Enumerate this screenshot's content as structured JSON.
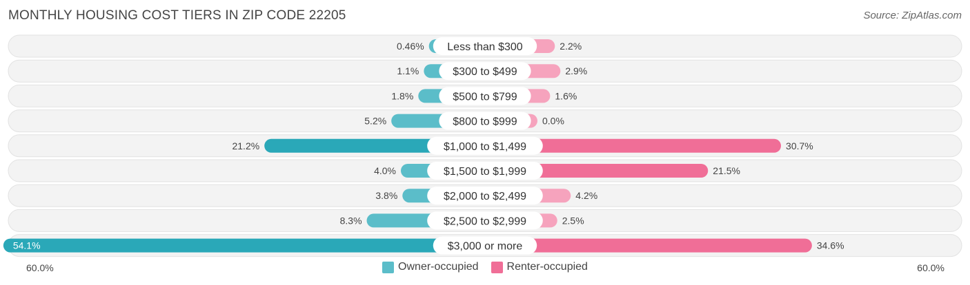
{
  "header": {
    "title": "MONTHLY HOUSING COST TIERS IN ZIP CODE 22205",
    "source": "Source: ZipAtlas.com"
  },
  "colors": {
    "owner": "#5bbdc9",
    "owner_strong": "#2aa8b8",
    "renter": "#f6a3bd",
    "renter_strong": "#f06e97",
    "track": "#f1f1f1"
  },
  "chart_data": {
    "type": "bar",
    "orientation": "horizontal-diverging",
    "categories": [
      "Less than $300",
      "$300 to $499",
      "$500 to $799",
      "$800 to $999",
      "$1,000 to $1,499",
      "$1,500 to $1,999",
      "$2,000 to $2,499",
      "$2,500 to $2,999",
      "$3,000 or more"
    ],
    "series": [
      {
        "name": "Owner-occupied",
        "values": [
          0.46,
          1.1,
          1.8,
          5.2,
          21.2,
          4.0,
          3.8,
          8.3,
          54.1
        ],
        "labels": [
          "0.46%",
          "1.1%",
          "1.8%",
          "5.2%",
          "21.2%",
          "4.0%",
          "3.8%",
          "8.3%",
          "54.1%"
        ]
      },
      {
        "name": "Renter-occupied",
        "values": [
          2.2,
          2.9,
          1.6,
          0.0,
          30.7,
          21.5,
          4.2,
          2.5,
          34.6
        ],
        "labels": [
          "2.2%",
          "2.9%",
          "1.6%",
          "0.0%",
          "30.7%",
          "21.5%",
          "4.2%",
          "2.5%",
          "34.6%"
        ]
      }
    ],
    "xlim": [
      -60,
      60
    ],
    "axis_labels": {
      "left": "60.0%",
      "right": "60.0%"
    },
    "legend_position": "bottom-center"
  }
}
